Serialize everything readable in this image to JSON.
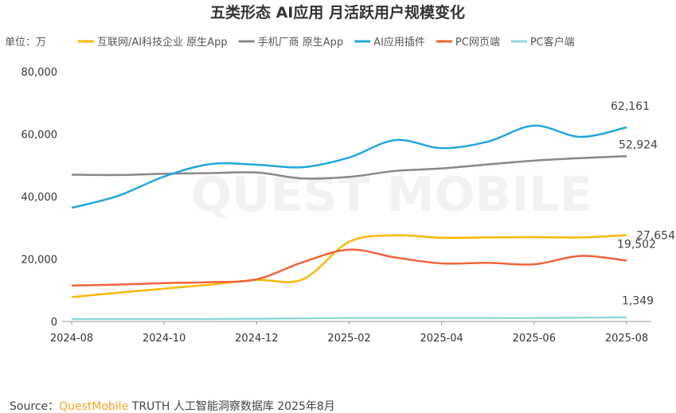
{
  "chart_data": {
    "type": "line",
    "title": "五类形态 AI应用 月活跃用户规模变化",
    "unit_label": "单位：万",
    "x": [
      "2024-08",
      "2024-09",
      "2024-10",
      "2024-11",
      "2024-12",
      "2025-01",
      "2025-02",
      "2025-03",
      "2025-04",
      "2025-05",
      "2025-06",
      "2025-07",
      "2025-08"
    ],
    "x_tick_labels": [
      "2024-08",
      "2024-10",
      "2024-12",
      "2025-02",
      "2025-04",
      "2025-06",
      "2025-08"
    ],
    "y_ticks": [
      0,
      20000,
      40000,
      60000,
      80000
    ],
    "y_tick_labels": [
      "0",
      "20,000",
      "40,000",
      "60,000",
      "80,000"
    ],
    "ylim": [
      0,
      80000
    ],
    "grid": false,
    "legend_position": "top",
    "series": [
      {
        "name": "互联网/AI科技企业 原生App",
        "color": "#f9b900",
        "values": [
          7800,
          9200,
          10500,
          11800,
          13300,
          13500,
          25500,
          27600,
          26800,
          26900,
          27000,
          26900,
          27654
        ],
        "end_label": "27,654"
      },
      {
        "name": "手机厂商 原生App",
        "color": "#888888",
        "values": [
          47000,
          46900,
          47300,
          47500,
          47700,
          45800,
          46300,
          48200,
          49000,
          50300,
          51500,
          52300,
          52924
        ],
        "end_label": "52,924"
      },
      {
        "name": "AI应用插件",
        "color": "#22a6dd",
        "values": [
          36400,
          40200,
          46400,
          50400,
          50200,
          49400,
          52500,
          58100,
          55500,
          57600,
          62700,
          59100,
          62161
        ],
        "end_label": "62,161"
      },
      {
        "name": "PC网页端",
        "color": "#f0643a",
        "values": [
          11500,
          11800,
          12300,
          12600,
          13500,
          19000,
          23000,
          20500,
          18600,
          18800,
          18300,
          21000,
          19502
        ],
        "end_label": "19,502"
      },
      {
        "name": "PC客户端",
        "color": "#8fd9d9",
        "values": [
          800,
          800,
          800,
          800,
          900,
          1000,
          1100,
          1100,
          1100,
          1100,
          1100,
          1200,
          1349
        ],
        "end_label": "1,349"
      }
    ]
  },
  "source": {
    "prefix": "Source：",
    "brand": "QuestMobile",
    "rest": " TRUTH 人工智能洞察数据库 2025年8月"
  },
  "watermark": "QUEST MOBILE"
}
